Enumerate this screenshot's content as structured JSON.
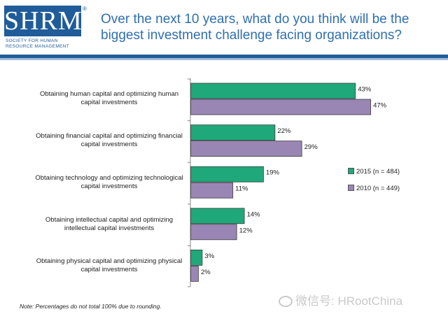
{
  "header": {
    "logo_text": "SHRM",
    "logo_reg": "®",
    "logo_subtitle_line1": "SOCIETY FOR HUMAN",
    "logo_subtitle_line2": "RESOURCE MANAGEMENT",
    "title": "Over the next 10 years, what do you think will be the biggest investment challenge facing organizations?"
  },
  "colors": {
    "brand": "#1f5c99",
    "title": "#2f6fb0",
    "series_2015": "#1fa87a",
    "series_2010": "#9a86b5"
  },
  "chart_data": {
    "type": "bar",
    "orientation": "horizontal",
    "categories": [
      "Obtaining human capital and optimizing human capital investments",
      "Obtaining financial capital and optimizing financial capital investments",
      "Obtaining technology and optimizing technological capital investments",
      "Obtaining intellectual capital and optimizing intellectual capital investments",
      "Obtaining physical capital and optimizing physical capital investments"
    ],
    "series": [
      {
        "name": "2015 (n = 484)",
        "values": [
          43,
          22,
          19,
          14,
          3
        ],
        "labels": [
          "43%",
          "22%",
          "19%",
          "14%",
          "3%"
        ],
        "color": "#1fa87a"
      },
      {
        "name": "2010 (n = 449)",
        "values": [
          47,
          29,
          11,
          12,
          2
        ],
        "labels": [
          "47%",
          "29%",
          "11%",
          "12%",
          "2%"
        ],
        "color": "#9a86b5"
      }
    ],
    "xlim": [
      0,
      50
    ],
    "grid": false,
    "legend_position": "right"
  },
  "footer": {
    "note": "Note: Percentages do not total 100% due to rounding.",
    "watermark": "微信号: HRootChina"
  }
}
